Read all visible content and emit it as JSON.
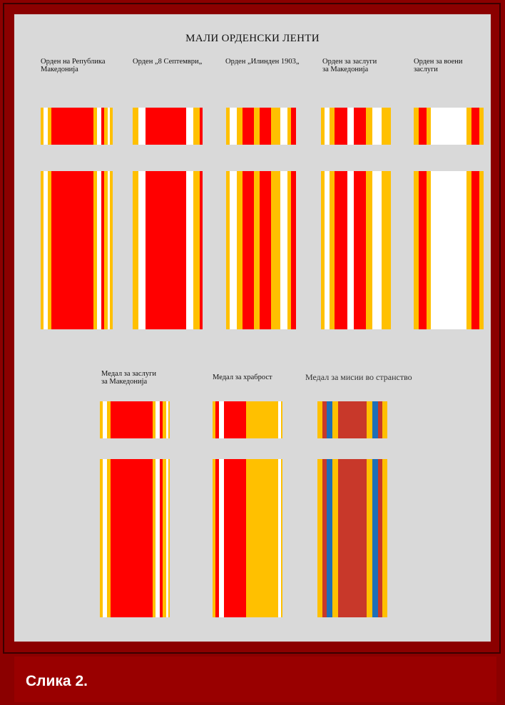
{
  "title": "МАЛИ ОРДЕНСКИ ЛЕНТИ",
  "caption": "Слика 2.",
  "colors": {
    "red": "#ff0000",
    "yellow": "#ffc000",
    "white": "#ffffff",
    "blue": "#1e6fb8",
    "rust": "#c8382a",
    "frame": "#8b0000",
    "panel": "#d9d9d9"
  },
  "ribbons": [
    {
      "name": "Орден на Република\nМакедонија",
      "stripes": [
        [
          "#ffc000",
          4
        ],
        [
          "#ffffff",
          6
        ],
        [
          "#ffc000",
          5
        ],
        [
          "#ff0000",
          60
        ],
        [
          "#ffc000",
          5
        ],
        [
          "#ffffff",
          6
        ],
        [
          "#ff0000",
          4
        ],
        [
          "#ffc000",
          5
        ],
        [
          "#ffffff",
          3
        ],
        [
          "#ffc000",
          4
        ]
      ]
    },
    {
      "name": "Орден „8 Септември„",
      "stripes": [
        [
          "#ffc000",
          8
        ],
        [
          "#ffffff",
          10
        ],
        [
          "#ff0000",
          57
        ],
        [
          "#ffffff",
          10
        ],
        [
          "#ffc000",
          9
        ],
        [
          "#ff0000",
          4
        ]
      ]
    },
    {
      "name": "Орден „Илинден 1903„",
      "stripes": [
        [
          "#ffc000",
          5
        ],
        [
          "#ffffff",
          10
        ],
        [
          "#ffc000",
          8
        ],
        [
          "#ff0000",
          16
        ],
        [
          "#ffc000",
          8
        ],
        [
          "#ff0000",
          16
        ],
        [
          "#ffc000",
          13
        ],
        [
          "#ffffff",
          10
        ],
        [
          "#ffc000",
          5
        ],
        [
          "#ff0000",
          7
        ]
      ]
    },
    {
      "name": "Орден за заслуги\nза Македонија",
      "stripes": [
        [
          "#ffc000",
          5
        ],
        [
          "#ffffff",
          7
        ],
        [
          "#ffc000",
          7
        ],
        [
          "#ff0000",
          18
        ],
        [
          "#ffffff",
          9
        ],
        [
          "#ff0000",
          17
        ],
        [
          "#ffc000",
          9
        ],
        [
          "#ffffff",
          13
        ],
        [
          "#ffc000",
          13
        ]
      ]
    },
    {
      "name": "Орден за воени\nзаслуги",
      "stripes": [
        [
          "#ffc000",
          7
        ],
        [
          "#ff0000",
          11
        ],
        [
          "#ffc000",
          6
        ],
        [
          "#ffffff",
          52
        ],
        [
          "#ffc000",
          7
        ],
        [
          "#ff0000",
          11
        ],
        [
          "#ffc000",
          6
        ]
      ]
    },
    {
      "name": "Медал за заслуги\nза Македонија",
      "stripes": [
        [
          "#ffc000",
          4
        ],
        [
          "#ffffff",
          6
        ],
        [
          "#ffc000",
          5
        ],
        [
          "#ff0000",
          60
        ],
        [
          "#ffc000",
          5
        ],
        [
          "#ffffff",
          6
        ],
        [
          "#ff0000",
          4
        ],
        [
          "#ffc000",
          5
        ],
        [
          "#ffffff",
          3
        ],
        [
          "#ffc000",
          2
        ]
      ]
    },
    {
      "name": "Медал за храброст",
      "stripes": [
        [
          "#ffc000",
          4
        ],
        [
          "#ff0000",
          5
        ],
        [
          "#ffffff",
          7
        ],
        [
          "#ff0000",
          32
        ],
        [
          "#ffc000",
          46
        ],
        [
          "#ffffff",
          4
        ],
        [
          "#ffc000",
          2
        ]
      ]
    },
    {
      "name": "Медал за мисии во странство",
      "stripes": [
        [
          "#ffc000",
          7
        ],
        [
          "#c8382a",
          6
        ],
        [
          "#1e6fb8",
          8
        ],
        [
          "#ffc000",
          7
        ],
        [
          "#c8382a",
          40
        ],
        [
          "#ffc000",
          7
        ],
        [
          "#1e6fb8",
          8
        ],
        [
          "#c8382a",
          6
        ],
        [
          "#ffc000",
          7
        ]
      ]
    }
  ]
}
